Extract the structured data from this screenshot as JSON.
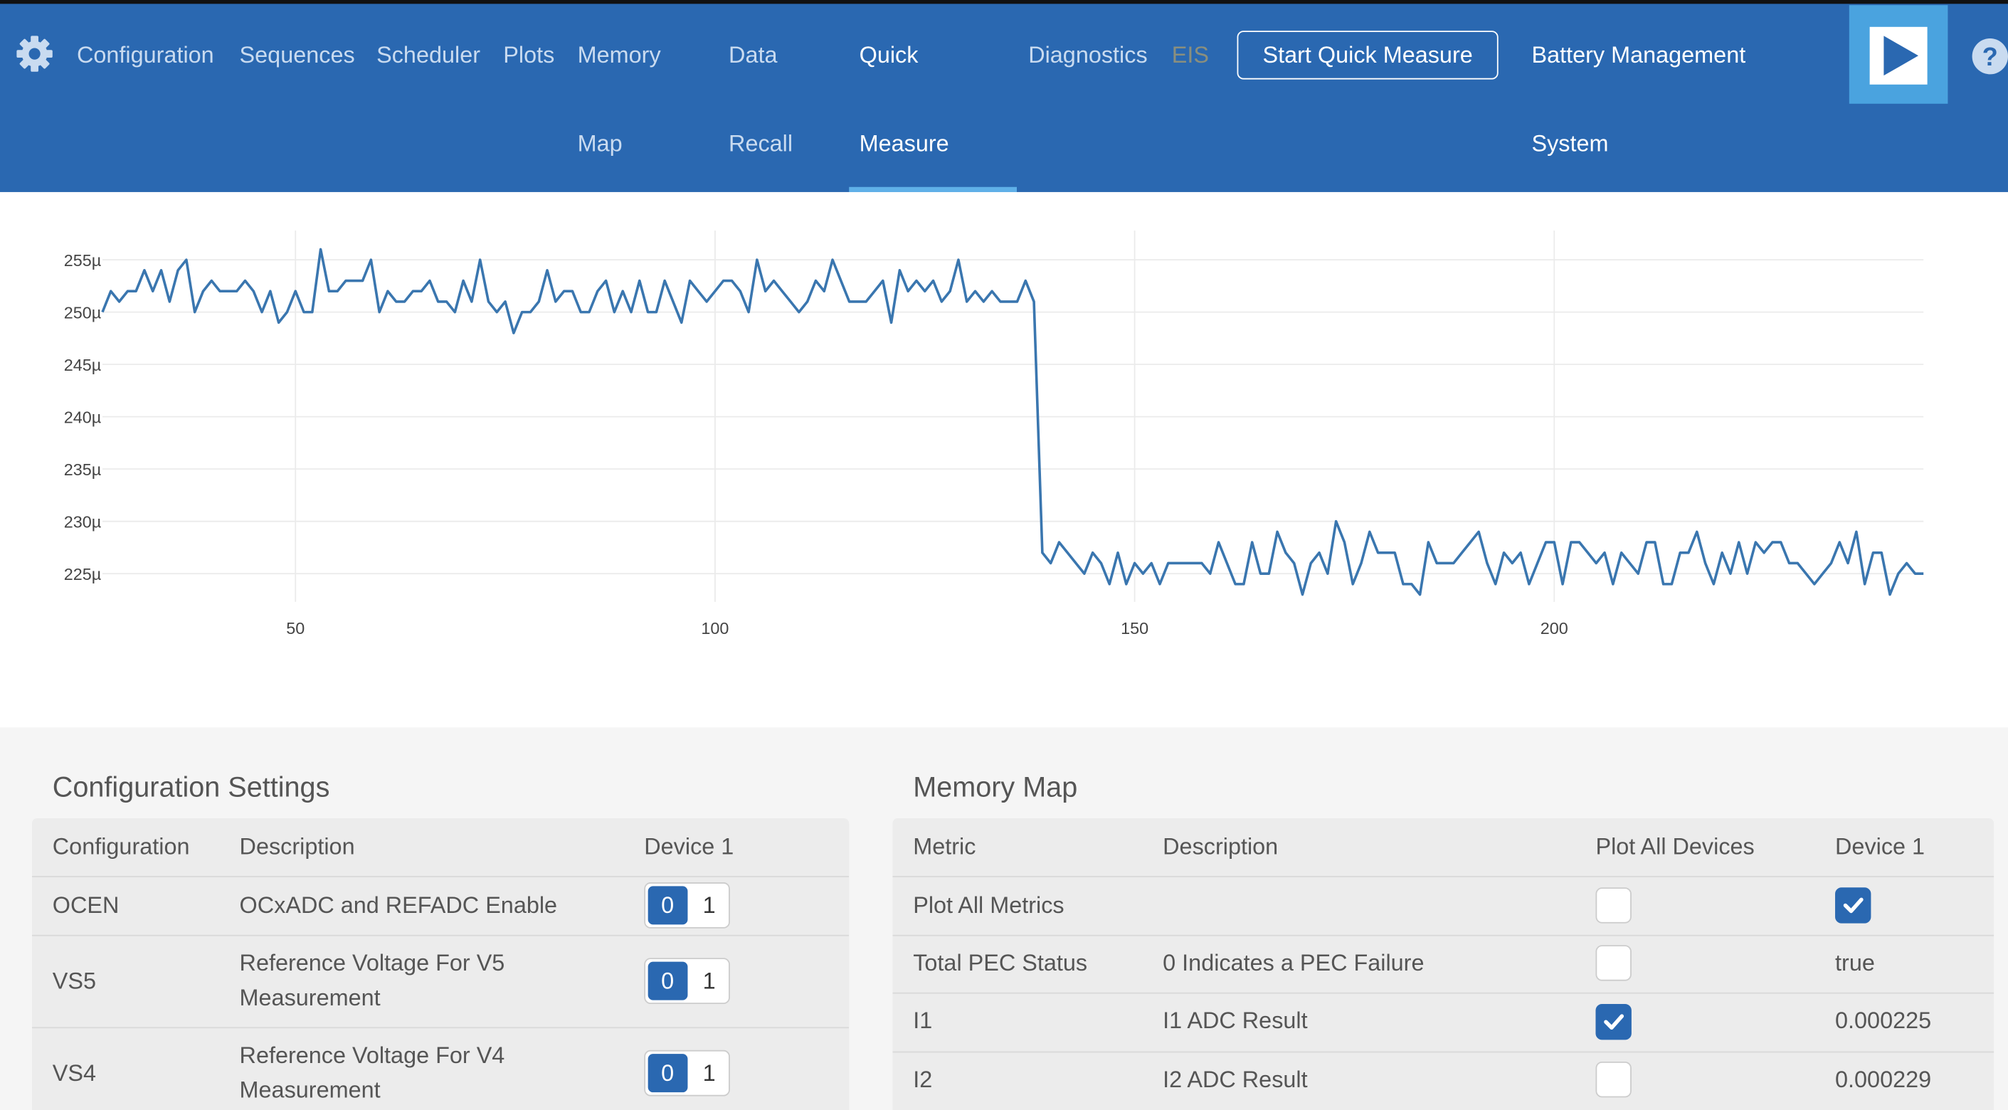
{
  "nav": [
    [
      "Configuration"
    ],
    [
      "Sequences"
    ],
    [
      "Scheduler"
    ],
    [
      "Plots"
    ],
    [
      "Memory",
      "Map"
    ],
    [
      "Data",
      "Recall"
    ],
    [
      "Quick",
      "Measure"
    ],
    [
      "Diagnostics"
    ],
    [
      "EIS"
    ],
    [
      "Battery Management",
      "System"
    ]
  ],
  "button": "Start Quick Measure",
  "chart_data": {
    "type": "line",
    "x": [
      27,
      28,
      29,
      30,
      31,
      32,
      33,
      34,
      35,
      36,
      37,
      38,
      39,
      40,
      41,
      42,
      43,
      44,
      45,
      46,
      47,
      48,
      49,
      50,
      51,
      52,
      53,
      54,
      55,
      56,
      57,
      58,
      59,
      60,
      61,
      62,
      63,
      64,
      65,
      66,
      67,
      68,
      69,
      70,
      71,
      72,
      73,
      74,
      75,
      76,
      77,
      78,
      79,
      80,
      81,
      82,
      83,
      84,
      85,
      86,
      87,
      88,
      89,
      90,
      91,
      92,
      93,
      94,
      95,
      96,
      97,
      98,
      99,
      100,
      101,
      102,
      103,
      104,
      105,
      106,
      107,
      108,
      109,
      110,
      111,
      112,
      113,
      114,
      115,
      116,
      117,
      118,
      119,
      120,
      121,
      122,
      123,
      124,
      125,
      126,
      127,
      128,
      129,
      130,
      131,
      132,
      133,
      134,
      135,
      136,
      137,
      138,
      139,
      140,
      141,
      142,
      143,
      144,
      145,
      146,
      147,
      148,
      149,
      150,
      151,
      152,
      153,
      154,
      155,
      156,
      157,
      158,
      159,
      160,
      161,
      162,
      163,
      164,
      165,
      166,
      167,
      168,
      169,
      170,
      171,
      172,
      173,
      174,
      175,
      176,
      177,
      178,
      179,
      180,
      181,
      182,
      183,
      184,
      185,
      186,
      187,
      188,
      189,
      190,
      191,
      192,
      193,
      194,
      195,
      196,
      197,
      198,
      199,
      200,
      201,
      202,
      203,
      204,
      205,
      206,
      207,
      208,
      209,
      210,
      211,
      212,
      213,
      214,
      215,
      216,
      217,
      218,
      219,
      220,
      221,
      222,
      223,
      224,
      225,
      226,
      227,
      228,
      229,
      230,
      231,
      232,
      233,
      234,
      235,
      236,
      237,
      238,
      239,
      240,
      241,
      242,
      243,
      244
    ],
    "series": [
      {
        "color": "#3a76af",
        "values": [
          0.00025,
          0.000252,
          0.000251,
          0.000252,
          0.000252,
          0.000254,
          0.000252,
          0.000254,
          0.000251,
          0.000254,
          0.000255,
          0.00025,
          0.000252,
          0.000253,
          0.000252,
          0.000252,
          0.000252,
          0.000253,
          0.000252,
          0.00025,
          0.000252,
          0.000249,
          0.00025,
          0.000252,
          0.00025,
          0.00025,
          0.000256,
          0.000252,
          0.000252,
          0.000253,
          0.000253,
          0.000253,
          0.000255,
          0.00025,
          0.000252,
          0.000251,
          0.000251,
          0.000252,
          0.000252,
          0.000253,
          0.000251,
          0.000251,
          0.00025,
          0.000253,
          0.000251,
          0.000255,
          0.000251,
          0.00025,
          0.000251,
          0.000248,
          0.00025,
          0.00025,
          0.000251,
          0.000254,
          0.000251,
          0.000252,
          0.000252,
          0.00025,
          0.00025,
          0.000252,
          0.000253,
          0.00025,
          0.000252,
          0.00025,
          0.000253,
          0.00025,
          0.00025,
          0.000253,
          0.000251,
          0.000249,
          0.000253,
          0.000252,
          0.000251,
          0.000252,
          0.000253,
          0.000253,
          0.000252,
          0.00025,
          0.000255,
          0.000252,
          0.000253,
          0.000252,
          0.000251,
          0.00025,
          0.000251,
          0.000253,
          0.000252,
          0.000255,
          0.000253,
          0.000251,
          0.000251,
          0.000251,
          0.000252,
          0.000253,
          0.000249,
          0.000254,
          0.000252,
          0.000253,
          0.000252,
          0.000253,
          0.000251,
          0.000252,
          0.000255,
          0.000251,
          0.000252,
          0.000251,
          0.000252,
          0.000251,
          0.000251,
          0.000251,
          0.000253,
          0.000251,
          0.000227,
          0.000226,
          0.000228,
          0.000227,
          0.000226,
          0.000225,
          0.000227,
          0.000226,
          0.000224,
          0.000227,
          0.000224,
          0.000226,
          0.000225,
          0.000226,
          0.000224,
          0.000226,
          0.000226,
          0.000226,
          0.000226,
          0.000226,
          0.000225,
          0.000228,
          0.000226,
          0.000224,
          0.000224,
          0.000228,
          0.000225,
          0.000225,
          0.000229,
          0.000227,
          0.000226,
          0.000223,
          0.000226,
          0.000227,
          0.000225,
          0.00023,
          0.000228,
          0.000224,
          0.000226,
          0.000229,
          0.000227,
          0.000227,
          0.000227,
          0.000224,
          0.000224,
          0.000223,
          0.000228,
          0.000226,
          0.000226,
          0.000226,
          0.000227,
          0.000228,
          0.000229,
          0.000226,
          0.000224,
          0.000227,
          0.000226,
          0.000227,
          0.000224,
          0.000226,
          0.000228,
          0.000228,
          0.000224,
          0.000228,
          0.000228,
          0.000227,
          0.000226,
          0.000227,
          0.000224,
          0.000227,
          0.000226,
          0.000225,
          0.000228,
          0.000228,
          0.000224,
          0.000224,
          0.000227,
          0.000227,
          0.000229,
          0.000226,
          0.000224,
          0.000227,
          0.000225,
          0.000228,
          0.000225,
          0.000228,
          0.000227,
          0.000228,
          0.000228,
          0.000226,
          0.000226,
          0.000225,
          0.000224,
          0.000225,
          0.000226,
          0.000228,
          0.000226,
          0.000229,
          0.000224,
          0.000227,
          0.000227,
          0.000223,
          0.000225,
          0.000226,
          0.000225,
          0.000225
        ]
      }
    ],
    "xlim": [
      27,
      244
    ],
    "xticks": [
      50,
      100,
      150,
      200
    ],
    "ylim": [
      0.0002223,
      0.0002578
    ],
    "yticks": [
      {
        "value": 0.000225,
        "label": "225µ"
      },
      {
        "value": 0.00023,
        "label": "230µ"
      },
      {
        "value": 0.000235,
        "label": "235µ"
      },
      {
        "value": 0.00024,
        "label": "240µ"
      },
      {
        "value": 0.000245,
        "label": "245µ"
      },
      {
        "value": 0.00025,
        "label": "250µ"
      },
      {
        "value": 0.000255,
        "label": "255µ"
      }
    ],
    "grid": true
  },
  "config": {
    "title": "Configuration Settings",
    "headers": [
      "Configuration",
      "Description",
      "Device 1"
    ],
    "rows": [
      {
        "name": "OCEN",
        "description": "OCxADC and REFADC Enable",
        "options": [
          "0",
          "1"
        ],
        "selected": 0
      },
      {
        "name": "VS5",
        "description": "Reference Voltage For V5 Measurement",
        "options": [
          "0",
          "1"
        ],
        "selected": 0
      },
      {
        "name": "VS4",
        "description": "Reference Voltage For V4 Measurement",
        "options": [
          "0",
          "1"
        ],
        "selected": 0
      }
    ]
  },
  "memory": {
    "title": "Memory Map",
    "headers": [
      "Metric",
      "Description",
      "Plot All Devices",
      "Device 1"
    ],
    "rows": [
      {
        "metric": "Plot All Metrics",
        "description": null,
        "plot_all": false,
        "device_1_checked": true
      },
      {
        "metric": "Total PEC Status",
        "description": "0 Indicates a PEC Failure",
        "plot_all": false,
        "device_1": "true"
      },
      {
        "metric": "I1",
        "description": "I1 ADC Result",
        "plot_all": true,
        "device_1": 0.000225
      },
      {
        "metric": "I2",
        "description": "I2 ADC Result",
        "plot_all": false,
        "device_1": 0.000229
      }
    ]
  }
}
